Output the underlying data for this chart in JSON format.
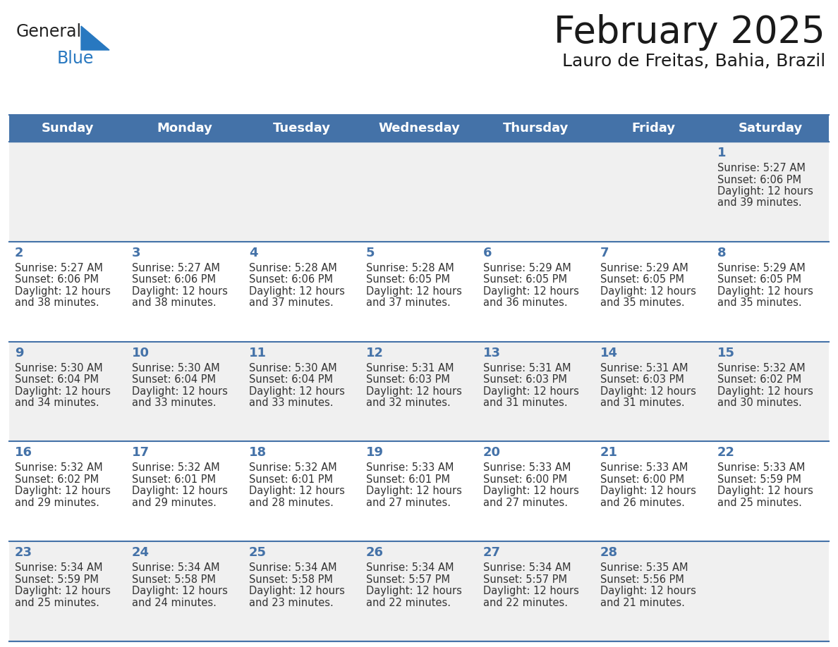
{
  "title": "February 2025",
  "subtitle": "Lauro de Freitas, Bahia, Brazil",
  "days_of_week": [
    "Sunday",
    "Monday",
    "Tuesday",
    "Wednesday",
    "Thursday",
    "Friday",
    "Saturday"
  ],
  "header_bg": "#4472a8",
  "header_text": "#ffffff",
  "cell_bg_odd": "#f0f0f0",
  "cell_bg_even": "#ffffff",
  "row_border_color": "#4472a8",
  "day_num_color": "#4472a8",
  "text_color": "#333333",
  "calendar": [
    [
      null,
      null,
      null,
      null,
      null,
      null,
      {
        "day": 1,
        "sunrise": "5:27 AM",
        "sunset": "6:06 PM",
        "daylight": "12 hours",
        "daylight2": "and 39 minutes."
      }
    ],
    [
      {
        "day": 2,
        "sunrise": "5:27 AM",
        "sunset": "6:06 PM",
        "daylight": "12 hours",
        "daylight2": "and 38 minutes."
      },
      {
        "day": 3,
        "sunrise": "5:27 AM",
        "sunset": "6:06 PM",
        "daylight": "12 hours",
        "daylight2": "and 38 minutes."
      },
      {
        "day": 4,
        "sunrise": "5:28 AM",
        "sunset": "6:06 PM",
        "daylight": "12 hours",
        "daylight2": "and 37 minutes."
      },
      {
        "day": 5,
        "sunrise": "5:28 AM",
        "sunset": "6:05 PM",
        "daylight": "12 hours",
        "daylight2": "and 37 minutes."
      },
      {
        "day": 6,
        "sunrise": "5:29 AM",
        "sunset": "6:05 PM",
        "daylight": "12 hours",
        "daylight2": "and 36 minutes."
      },
      {
        "day": 7,
        "sunrise": "5:29 AM",
        "sunset": "6:05 PM",
        "daylight": "12 hours",
        "daylight2": "and 35 minutes."
      },
      {
        "day": 8,
        "sunrise": "5:29 AM",
        "sunset": "6:05 PM",
        "daylight": "12 hours",
        "daylight2": "and 35 minutes."
      }
    ],
    [
      {
        "day": 9,
        "sunrise": "5:30 AM",
        "sunset": "6:04 PM",
        "daylight": "12 hours",
        "daylight2": "and 34 minutes."
      },
      {
        "day": 10,
        "sunrise": "5:30 AM",
        "sunset": "6:04 PM",
        "daylight": "12 hours",
        "daylight2": "and 33 minutes."
      },
      {
        "day": 11,
        "sunrise": "5:30 AM",
        "sunset": "6:04 PM",
        "daylight": "12 hours",
        "daylight2": "and 33 minutes."
      },
      {
        "day": 12,
        "sunrise": "5:31 AM",
        "sunset": "6:03 PM",
        "daylight": "12 hours",
        "daylight2": "and 32 minutes."
      },
      {
        "day": 13,
        "sunrise": "5:31 AM",
        "sunset": "6:03 PM",
        "daylight": "12 hours",
        "daylight2": "and 31 minutes."
      },
      {
        "day": 14,
        "sunrise": "5:31 AM",
        "sunset": "6:03 PM",
        "daylight": "12 hours",
        "daylight2": "and 31 minutes."
      },
      {
        "day": 15,
        "sunrise": "5:32 AM",
        "sunset": "6:02 PM",
        "daylight": "12 hours",
        "daylight2": "and 30 minutes."
      }
    ],
    [
      {
        "day": 16,
        "sunrise": "5:32 AM",
        "sunset": "6:02 PM",
        "daylight": "12 hours",
        "daylight2": "and 29 minutes."
      },
      {
        "day": 17,
        "sunrise": "5:32 AM",
        "sunset": "6:01 PM",
        "daylight": "12 hours",
        "daylight2": "and 29 minutes."
      },
      {
        "day": 18,
        "sunrise": "5:32 AM",
        "sunset": "6:01 PM",
        "daylight": "12 hours",
        "daylight2": "and 28 minutes."
      },
      {
        "day": 19,
        "sunrise": "5:33 AM",
        "sunset": "6:01 PM",
        "daylight": "12 hours",
        "daylight2": "and 27 minutes."
      },
      {
        "day": 20,
        "sunrise": "5:33 AM",
        "sunset": "6:00 PM",
        "daylight": "12 hours",
        "daylight2": "and 27 minutes."
      },
      {
        "day": 21,
        "sunrise": "5:33 AM",
        "sunset": "6:00 PM",
        "daylight": "12 hours",
        "daylight2": "and 26 minutes."
      },
      {
        "day": 22,
        "sunrise": "5:33 AM",
        "sunset": "5:59 PM",
        "daylight": "12 hours",
        "daylight2": "and 25 minutes."
      }
    ],
    [
      {
        "day": 23,
        "sunrise": "5:34 AM",
        "sunset": "5:59 PM",
        "daylight": "12 hours",
        "daylight2": "and 25 minutes."
      },
      {
        "day": 24,
        "sunrise": "5:34 AM",
        "sunset": "5:58 PM",
        "daylight": "12 hours",
        "daylight2": "and 24 minutes."
      },
      {
        "day": 25,
        "sunrise": "5:34 AM",
        "sunset": "5:58 PM",
        "daylight": "12 hours",
        "daylight2": "and 23 minutes."
      },
      {
        "day": 26,
        "sunrise": "5:34 AM",
        "sunset": "5:57 PM",
        "daylight": "12 hours",
        "daylight2": "and 22 minutes."
      },
      {
        "day": 27,
        "sunrise": "5:34 AM",
        "sunset": "5:57 PM",
        "daylight": "12 hours",
        "daylight2": "and 22 minutes."
      },
      {
        "day": 28,
        "sunrise": "5:35 AM",
        "sunset": "5:56 PM",
        "daylight": "12 hours",
        "daylight2": "and 21 minutes."
      },
      null
    ]
  ],
  "logo_general_color": "#222222",
  "logo_blue_color": "#2878c0",
  "logo_triangle_color": "#2878c0",
  "fig_width": 11.88,
  "fig_height": 9.18,
  "dpi": 100
}
